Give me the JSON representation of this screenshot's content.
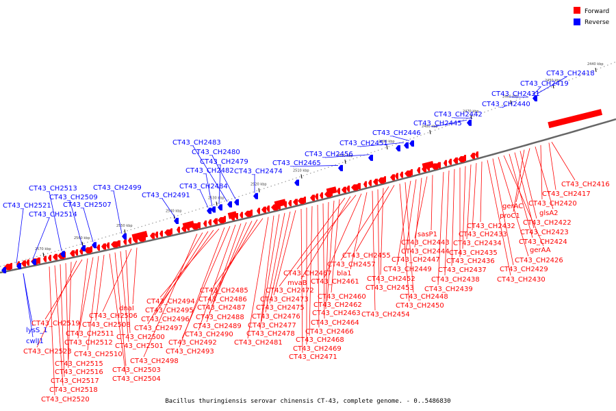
{
  "colors": {
    "forward": "#ff0000",
    "reverse": "#0000ff",
    "backbone": "#666666",
    "scale": "#999999"
  },
  "legend": {
    "forward_label": "Forward",
    "reverse_label": "Reverse"
  },
  "caption": "Bacillus thuringiensis serovar chinensis CT-43, complete genome. - 0..5486830",
  "scale_ticks": [
    "2440 kbp",
    "2450 kbp",
    "2460 kbp",
    "2470 kbp",
    "2480 kbp",
    "2490 kbp",
    "2500 kbp",
    "2510 kbp",
    "2520 kbp",
    "2530 kbp",
    "2540 kbp",
    "2550 kbp",
    "2560 kbp",
    "2570 kbp"
  ],
  "reverse_labels": [
    "CT43_CH2418",
    "CT43_CH2419",
    "CT43_CH2431",
    "CT43_CH2440",
    "CT43_CH2442",
    "CT43_CH2445",
    "CT43_CH2446",
    "CT43_CH2451",
    "CT43_CH2456",
    "CT43_CH2465",
    "CT43_CH2474",
    "CT43_CH2483",
    "CT43_CH2480",
    "CT43_CH2479",
    "CT43_CH2482",
    "CT43_CH2484",
    "CT43_CH2491",
    "CT43_CH2499",
    "CT43_CH2513",
    "CT43_CH2509",
    "CT43_CH2507",
    "CT43_CH2521",
    "CT43_CH2514",
    "lysS_1",
    "cwlJ1"
  ],
  "forward_labels": [
    "CT43_CH2416",
    "CT43_CH2417",
    "CT43_CH2420",
    "glsA2",
    "gerAC",
    "proC1",
    "CT43_CH2422",
    "CT43_CH2423",
    "CT43_CH2424",
    "gerAA",
    "CT43_CH2426",
    "CT43_CH2429",
    "CT43_CH2430",
    "CT43_CH2432",
    "CT43_CH2433",
    "CT43_CH2434",
    "CT43_CH2435",
    "CT43_CH2436",
    "CT43_CH2437",
    "CT43_CH2438",
    "CT43_CH2439",
    "sasP1",
    "CT43_CH2443",
    "CT43_CH2444",
    "CT43_CH2447",
    "CT43_CH2449",
    "CT43_CH2448",
    "CT43_CH2450",
    "CT43_CH2455",
    "CT43_CH2457",
    "CT43_CH2452",
    "CT43_CH2453",
    "CT43_CH2454",
    "bla1",
    "CT43_CH2461",
    "CT43_CH2467",
    "mvaB",
    "CT43_CH2472",
    "CT43_CH2460",
    "CT43_CH2462",
    "CT43_CH2463",
    "CT43_CH2464",
    "CT43_CH2466",
    "CT43_CH2468",
    "CT43_CH2469",
    "CT43_CH2471",
    "CT43_CH2473",
    "CT43_CH2475",
    "CT43_CH2476",
    "CT43_CH2477",
    "CT43_CH2478",
    "CT43_CH2481",
    "CT43_CH2485",
    "CT43_CH2486",
    "CT43_CH2487",
    "CT43_CH2488",
    "CT43_CH2489",
    "CT43_CH2490",
    "CT43_CH2492",
    "CT43_CH2493",
    "CT43_CH2494",
    "CT43_CH2495",
    "CT43_CH2496",
    "CT43_CH2497",
    "CT43_CH2498",
    "dnaI",
    "CT43_CH2506",
    "CT43_CH2500",
    "CT43_CH2501",
    "CT43_CH2503",
    "CT43_CH2504",
    "CT43_CH2508",
    "CT43_CH2510",
    "CT43_CH2511",
    "CT43_CH2512",
    "CT43_CH2519",
    "CT43_CH2523",
    "CT43_CH2515",
    "CT43_CH2516",
    "CT43_CH2517",
    "CT43_CH2518",
    "CT43_CH2520"
  ]
}
